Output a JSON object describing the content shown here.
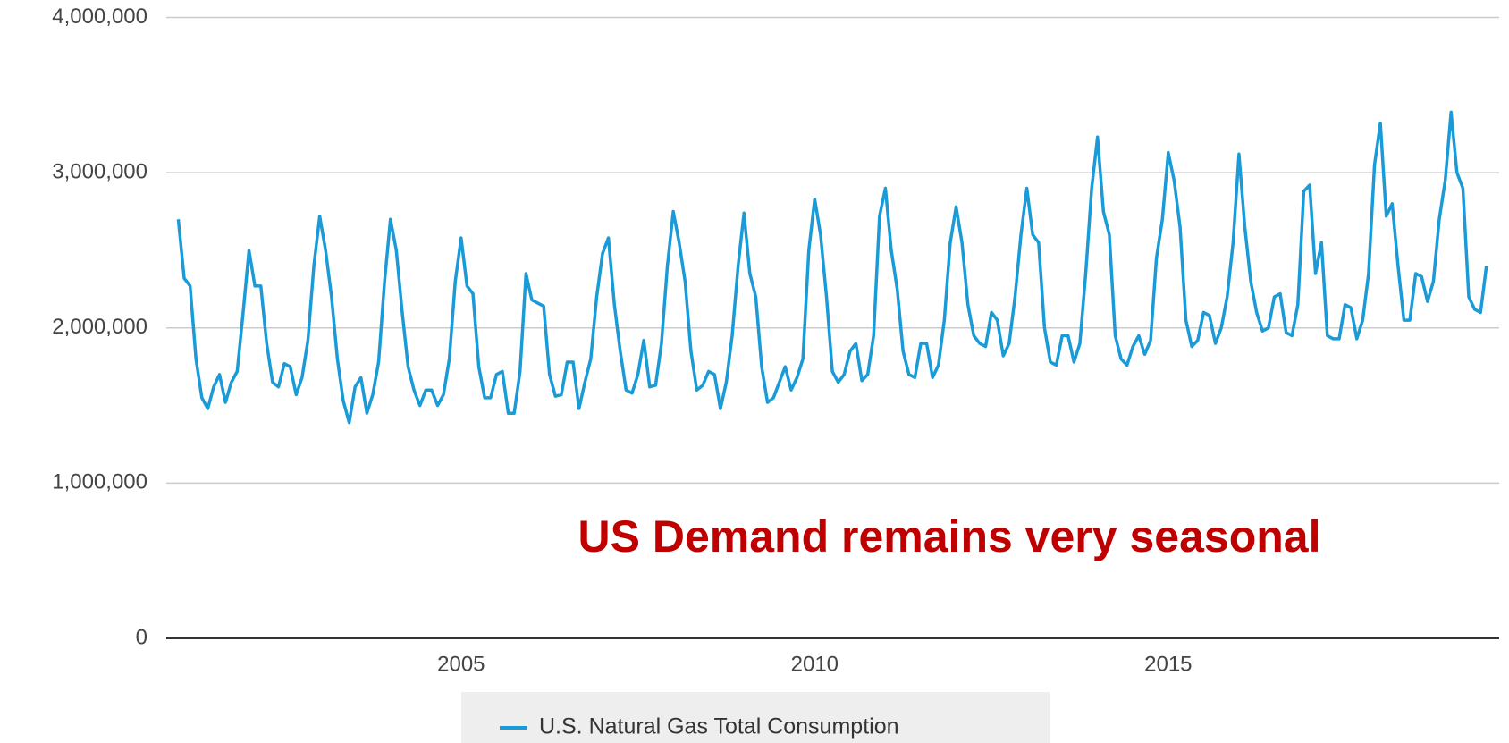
{
  "chart_data": {
    "type": "line",
    "annotation": "US Demand remains very seasonal",
    "x": [
      2001,
      2001.083,
      2001.167,
      2001.25,
      2001.333,
      2001.417,
      2001.5,
      2001.583,
      2001.667,
      2001.75,
      2001.833,
      2001.917,
      2002,
      2002.083,
      2002.167,
      2002.25,
      2002.333,
      2002.417,
      2002.5,
      2002.583,
      2002.667,
      2002.75,
      2002.833,
      2002.917,
      2003,
      2003.083,
      2003.167,
      2003.25,
      2003.333,
      2003.417,
      2003.5,
      2003.583,
      2003.667,
      2003.75,
      2003.833,
      2003.917,
      2004,
      2004.083,
      2004.167,
      2004.25,
      2004.333,
      2004.417,
      2004.5,
      2004.583,
      2004.667,
      2004.75,
      2004.833,
      2004.917,
      2005,
      2005.083,
      2005.167,
      2005.25,
      2005.333,
      2005.417,
      2005.5,
      2005.583,
      2005.667,
      2005.75,
      2005.833,
      2005.917,
      2006,
      2006.083,
      2006.167,
      2006.25,
      2006.333,
      2006.417,
      2006.5,
      2006.583,
      2006.667,
      2006.75,
      2006.833,
      2006.917,
      2007,
      2007.083,
      2007.167,
      2007.25,
      2007.333,
      2007.417,
      2007.5,
      2007.583,
      2007.667,
      2007.75,
      2007.833,
      2007.917,
      2008,
      2008.083,
      2008.167,
      2008.25,
      2008.333,
      2008.417,
      2008.5,
      2008.583,
      2008.667,
      2008.75,
      2008.833,
      2008.917,
      2009,
      2009.083,
      2009.167,
      2009.25,
      2009.333,
      2009.417,
      2009.5,
      2009.583,
      2009.667,
      2009.75,
      2009.833,
      2009.917,
      2010,
      2010.083,
      2010.167,
      2010.25,
      2010.333,
      2010.417,
      2010.5,
      2010.583,
      2010.667,
      2010.75,
      2010.833,
      2010.917,
      2011,
      2011.083,
      2011.167,
      2011.25,
      2011.333,
      2011.417,
      2011.5,
      2011.583,
      2011.667,
      2011.75,
      2011.833,
      2011.917,
      2012,
      2012.083,
      2012.167,
      2012.25,
      2012.333,
      2012.417,
      2012.5,
      2012.583,
      2012.667,
      2012.75,
      2012.833,
      2012.917,
      2013,
      2013.083,
      2013.167,
      2013.25,
      2013.333,
      2013.417,
      2013.5,
      2013.583,
      2013.667,
      2013.75,
      2013.833,
      2013.917,
      2014,
      2014.083,
      2014.167,
      2014.25,
      2014.333,
      2014.417,
      2014.5,
      2014.583,
      2014.667,
      2014.75,
      2014.833,
      2014.917,
      2015,
      2015.083,
      2015.167,
      2015.25,
      2015.333,
      2015.417,
      2015.5,
      2015.583,
      2015.667,
      2015.75,
      2015.833,
      2015.917,
      2016,
      2016.083,
      2016.167,
      2016.25,
      2016.333,
      2016.417,
      2016.5,
      2016.583,
      2016.667,
      2016.75,
      2016.833,
      2016.917,
      2017,
      2017.083,
      2017.167,
      2017.25,
      2017.333,
      2017.417,
      2017.5,
      2017.583,
      2017.667,
      2017.75,
      2017.833,
      2017.917,
      2018,
      2018.083,
      2018.167,
      2018.25,
      2018.333,
      2018.417,
      2018.5,
      2018.583,
      2018.667,
      2018.75,
      2018.833,
      2018.917,
      2019,
      2019.083,
      2019.167,
      2019.25,
      2019.333,
      2019.417,
      2019.5
    ],
    "series": [
      {
        "name": "U.S. Natural Gas Total Consumption",
        "color": "#1a9bd7",
        "values": [
          2700000,
          2320000,
          2270000,
          1800000,
          1550000,
          1480000,
          1620000,
          1700000,
          1520000,
          1650000,
          1720000,
          2100000,
          2500000,
          2270000,
          2270000,
          1900000,
          1650000,
          1620000,
          1770000,
          1750000,
          1570000,
          1680000,
          1920000,
          2400000,
          2720000,
          2500000,
          2200000,
          1800000,
          1530000,
          1390000,
          1620000,
          1680000,
          1450000,
          1570000,
          1780000,
          2300000,
          2700000,
          2500000,
          2100000,
          1750000,
          1600000,
          1500000,
          1600000,
          1600000,
          1500000,
          1570000,
          1800000,
          2300000,
          2580000,
          2270000,
          2220000,
          1750000,
          1550000,
          1550000,
          1700000,
          1720000,
          1450000,
          1450000,
          1720000,
          2350000,
          2180000,
          2160000,
          2140000,
          1700000,
          1560000,
          1570000,
          1780000,
          1780000,
          1480000,
          1650000,
          1800000,
          2200000,
          2480000,
          2580000,
          2150000,
          1850000,
          1600000,
          1580000,
          1700000,
          1920000,
          1620000,
          1630000,
          1900000,
          2400000,
          2750000,
          2550000,
          2300000,
          1850000,
          1600000,
          1630000,
          1720000,
          1700000,
          1480000,
          1650000,
          1950000,
          2400000,
          2740000,
          2350000,
          2200000,
          1750000,
          1520000,
          1550000,
          1650000,
          1750000,
          1600000,
          1680000,
          1800000,
          2500000,
          2830000,
          2600000,
          2200000,
          1720000,
          1650000,
          1700000,
          1850000,
          1900000,
          1660000,
          1700000,
          1950000,
          2720000,
          2900000,
          2500000,
          2250000,
          1850000,
          1700000,
          1680000,
          1900000,
          1900000,
          1680000,
          1760000,
          2050000,
          2550000,
          2780000,
          2550000,
          2150000,
          1950000,
          1900000,
          1880000,
          2100000,
          2050000,
          1820000,
          1900000,
          2200000,
          2600000,
          2900000,
          2600000,
          2550000,
          2000000,
          1780000,
          1760000,
          1950000,
          1950000,
          1780000,
          1900000,
          2350000,
          2900000,
          3230000,
          2750000,
          2600000,
          1950000,
          1800000,
          1760000,
          1880000,
          1950000,
          1830000,
          1920000,
          2450000,
          2700000,
          3130000,
          2950000,
          2650000,
          2050000,
          1880000,
          1920000,
          2100000,
          2080000,
          1900000,
          2000000,
          2200000,
          2550000,
          3120000,
          2650000,
          2300000,
          2100000,
          1980000,
          2000000,
          2200000,
          2220000,
          1970000,
          1950000,
          2150000,
          2880000,
          2920000,
          2350000,
          2550000,
          1950000,
          1930000,
          1930000,
          2150000,
          2130000,
          1930000,
          2050000,
          2350000,
          3050000,
          3320000,
          2720000,
          2800000,
          2400000,
          2050000,
          2050000,
          2350000,
          2330000,
          2170000,
          2300000,
          2700000,
          2950000,
          3390000,
          3000000,
          2900000,
          2200000,
          2120000,
          2100000,
          2400000
        ]
      }
    ],
    "xlim": [
      2000.83,
      2019.68
    ],
    "xticks": [
      2005,
      2010,
      2015
    ],
    "ylim": [
      0,
      4000000
    ],
    "yticks": [
      {
        "value": 0,
        "label": "0"
      },
      {
        "value": 1000000,
        "label": "1,000,000"
      },
      {
        "value": 2000000,
        "label": "2,000,000"
      },
      {
        "value": 3000000,
        "label": "3,000,000"
      },
      {
        "value": 4000000,
        "label": "4,000,000"
      }
    ],
    "grid": true,
    "legend": "bottom"
  }
}
